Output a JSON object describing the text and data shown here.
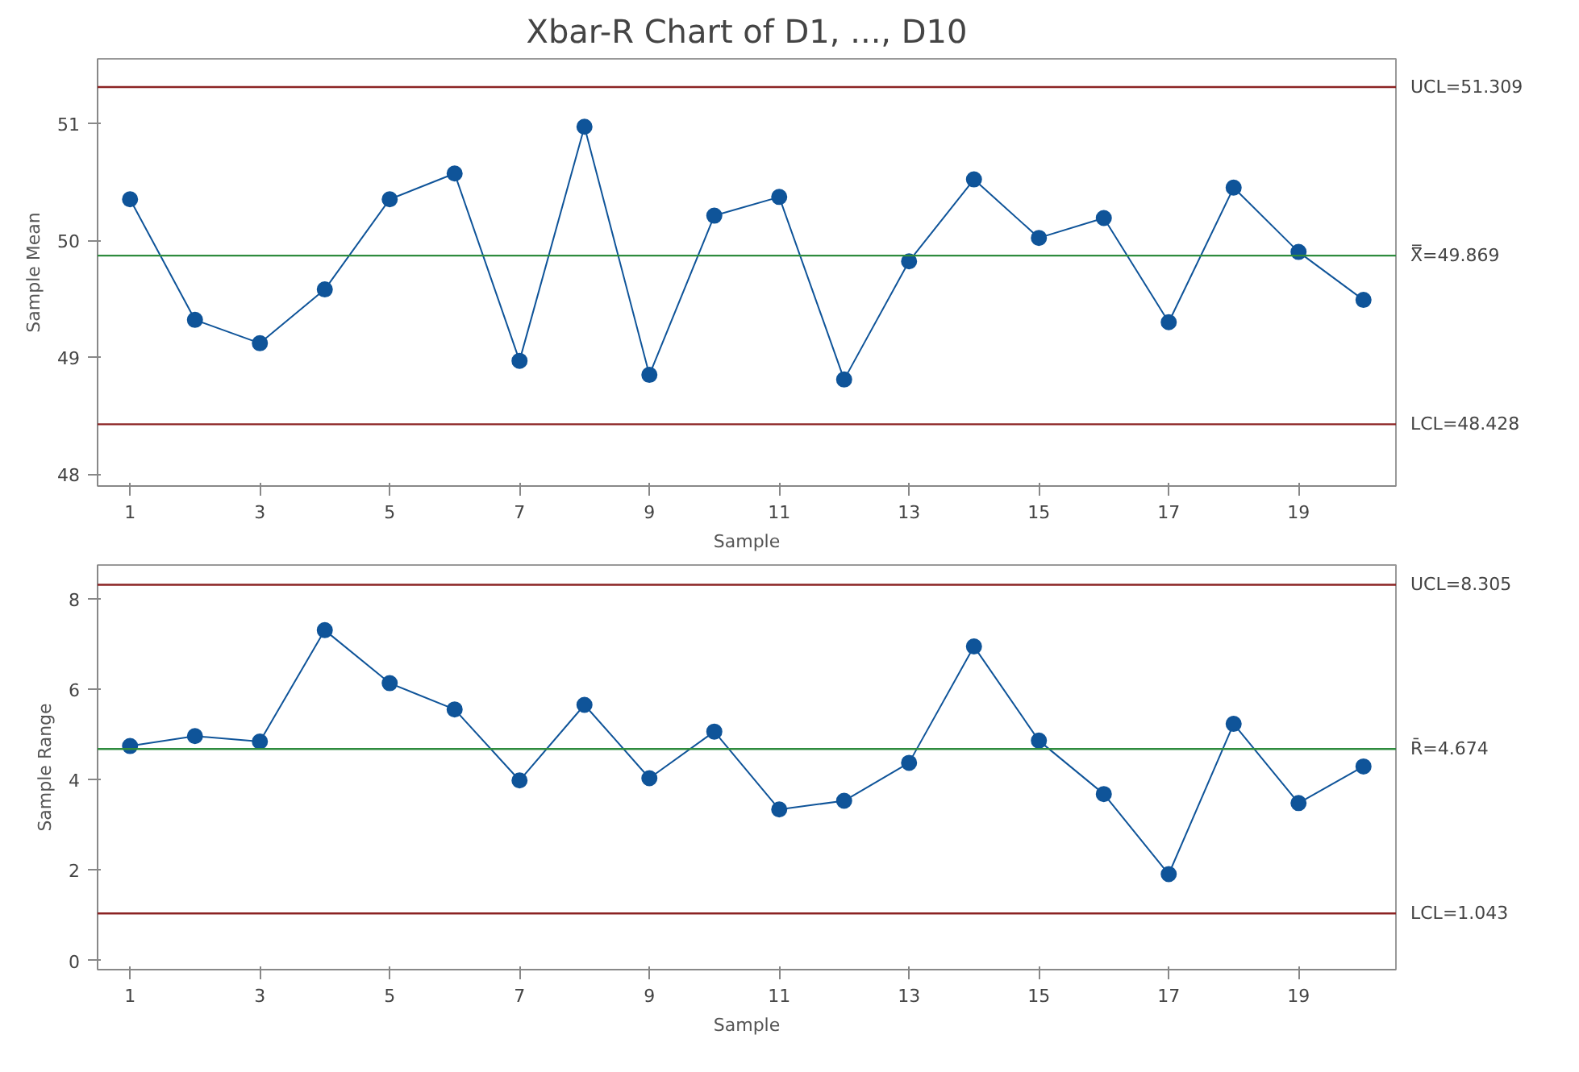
{
  "chart_data": [
    {
      "type": "line",
      "title": "Xbar-R Chart of D1, ..., D10",
      "xlabel": "Sample",
      "ylabel": "Sample Mean",
      "x": [
        1,
        2,
        3,
        4,
        5,
        6,
        7,
        8,
        9,
        10,
        11,
        12,
        13,
        14,
        15,
        16,
        17,
        18,
        19,
        20
      ],
      "series": [
        {
          "color": "#0f5499",
          "values": [
            50.35,
            49.32,
            49.12,
            49.58,
            50.35,
            50.57,
            48.97,
            50.97,
            48.85,
            50.21,
            50.37,
            48.81,
            49.82,
            50.52,
            50.02,
            50.19,
            49.3,
            50.45,
            49.9,
            49.49
          ]
        }
      ],
      "marker": "circle",
      "line_style": "solid",
      "grid": false,
      "xlim": [
        0.5,
        20.5
      ],
      "xticks": [
        1,
        3,
        5,
        7,
        9,
        11,
        13,
        15,
        17,
        19
      ],
      "ylim": [
        47.9,
        51.55
      ],
      "yticks": [
        48,
        49,
        50,
        51
      ],
      "ref_lines": [
        {
          "axis": "y",
          "value": 51.309,
          "label": "UCL=51.309",
          "color": "#8b2323"
        },
        {
          "axis": "y",
          "value": 49.869,
          "label": "X̿=49.869",
          "color": "#2e8b3e"
        },
        {
          "axis": "y",
          "value": 48.428,
          "label": "LCL=48.428",
          "color": "#8b2323"
        }
      ]
    },
    {
      "type": "line",
      "xlabel": "Sample",
      "ylabel": "Sample Range",
      "x": [
        1,
        2,
        3,
        4,
        5,
        6,
        7,
        8,
        9,
        10,
        11,
        12,
        13,
        14,
        15,
        16,
        17,
        18,
        19,
        20
      ],
      "series": [
        {
          "color": "#0f5499",
          "values": [
            4.74,
            4.96,
            4.84,
            7.3,
            6.13,
            5.55,
            3.98,
            5.65,
            4.03,
            5.06,
            3.34,
            3.53,
            4.37,
            6.94,
            4.86,
            3.68,
            1.91,
            5.23,
            3.48,
            4.29
          ]
        }
      ],
      "marker": "circle",
      "line_style": "solid",
      "grid": false,
      "xlim": [
        0.5,
        20.5
      ],
      "xticks": [
        1,
        3,
        5,
        7,
        9,
        11,
        13,
        15,
        17,
        19
      ],
      "ylim": [
        -0.2,
        8.74
      ],
      "yticks": [
        0,
        2,
        4,
        6,
        8
      ],
      "ref_lines": [
        {
          "axis": "y",
          "value": 8.305,
          "label": "UCL=8.305",
          "color": "#8b2323"
        },
        {
          "axis": "y",
          "value": 4.674,
          "label": "R̄=4.674",
          "color": "#2e8b3e"
        },
        {
          "axis": "y",
          "value": 1.043,
          "label": "LCL=1.043",
          "color": "#8b2323"
        }
      ]
    }
  ]
}
